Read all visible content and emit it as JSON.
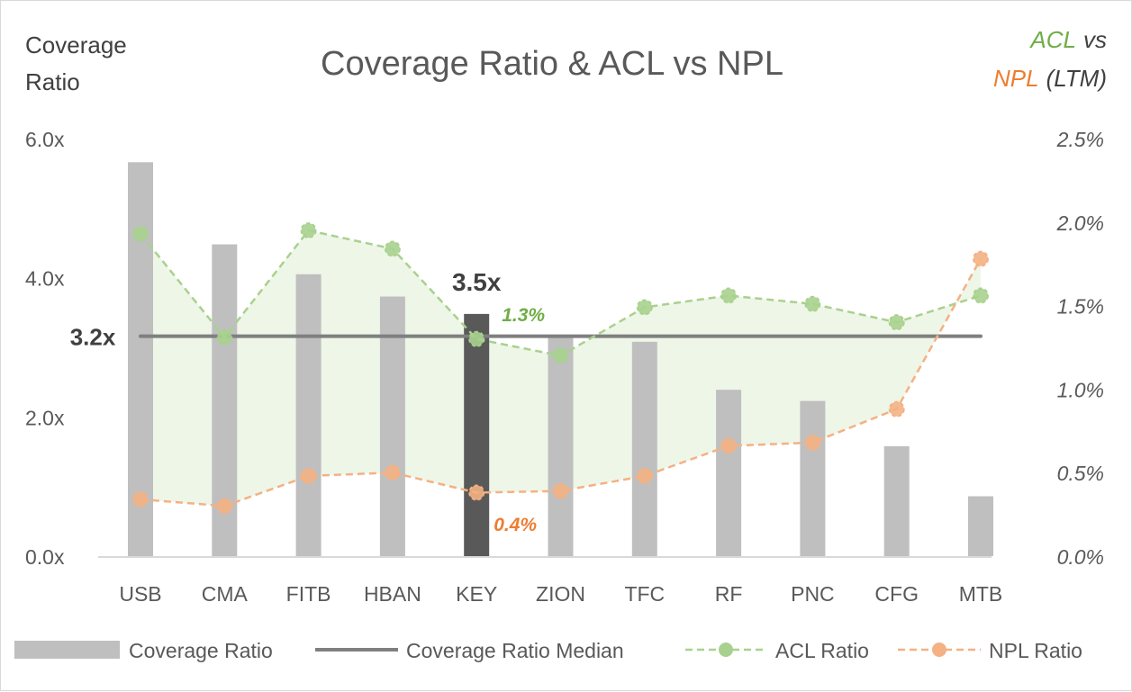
{
  "chart_data": {
    "type": "bar+line",
    "title": "Coverage Ratio & ACL vs NPL",
    "ylabel_left": [
      "Coverage",
      "Ratio"
    ],
    "ylabel_right": {
      "acl": "ACL",
      "vs": "vs",
      "npl": "NPL",
      "ltm": "(LTM)"
    },
    "categories": [
      "USB",
      "CMA",
      "FITB",
      "HBAN",
      "KEY",
      "ZION",
      "TFC",
      "RF",
      "PNC",
      "CFG",
      "MTB"
    ],
    "left_axis": {
      "ylim": [
        0,
        6
      ],
      "ticks": [
        "0.0x",
        "2.0x",
        "4.0x",
        "6.0x"
      ],
      "tick_values": [
        0,
        2,
        4,
        6
      ]
    },
    "right_axis": {
      "ylim": [
        0,
        2.5
      ],
      "ticks": [
        "0.0%",
        "0.5%",
        "1.0%",
        "1.5%",
        "2.0%",
        "2.5%"
      ],
      "tick_values": [
        0,
        0.5,
        1,
        1.5,
        2,
        2.5
      ]
    },
    "series": [
      {
        "name": "Coverage Ratio",
        "type": "bar",
        "axis": "left",
        "values": [
          5.66,
          4.48,
          4.05,
          3.73,
          3.48,
          3.15,
          3.08,
          2.39,
          2.23,
          1.58,
          0.86
        ]
      },
      {
        "name": "Coverage Ratio Median",
        "type": "line",
        "axis": "left",
        "value": 3.16
      },
      {
        "name": "ACL Ratio",
        "type": "line",
        "axis": "right",
        "values": [
          1.93,
          1.31,
          1.95,
          1.84,
          1.3,
          1.2,
          1.49,
          1.56,
          1.51,
          1.4,
          1.56
        ]
      },
      {
        "name": "NPL Ratio",
        "type": "line",
        "axis": "right",
        "values": [
          0.34,
          0.3,
          0.48,
          0.5,
          0.38,
          0.39,
          0.48,
          0.66,
          0.68,
          0.88,
          1.78
        ]
      }
    ],
    "highlight": "KEY",
    "annotations": {
      "median_label": "3.2x",
      "key_coverage": "3.5x",
      "key_acl": "1.3%",
      "key_npl": "0.4%"
    },
    "colors": {
      "bar": "#bfbfbf",
      "bar_highlight": "#595959",
      "median": "#7f7f7f",
      "acl": "#a9d18e",
      "npl": "#f4b183",
      "acl_text": "#70ad47",
      "npl_text": "#ed7d31",
      "fill": "#eef6e8",
      "text": "#595959"
    },
    "legend": {
      "position": "bottom",
      "items": [
        "Coverage Ratio",
        "Coverage Ratio Median",
        "ACL Ratio",
        "NPL Ratio"
      ]
    },
    "grid": false
  }
}
